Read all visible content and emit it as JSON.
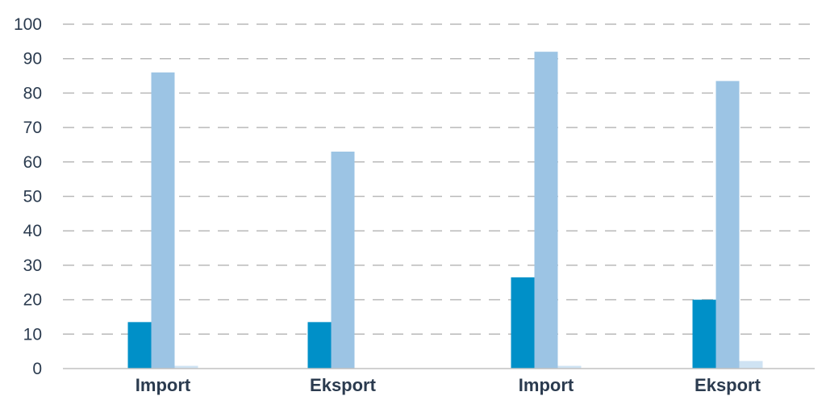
{
  "chart_data": {
    "type": "bar",
    "categories": [
      "Import",
      "Eksport",
      "Import",
      "Eksport"
    ],
    "series": [
      {
        "values": [
          13.5,
          13.5,
          26.5,
          20
        ],
        "color": "#0090c8"
      },
      {
        "values": [
          86,
          63,
          92,
          83.5
        ],
        "color": "#9cc4e4"
      },
      {
        "values": [
          0.8,
          0,
          0.8,
          2.2
        ],
        "color": "#cfe3f3"
      }
    ],
    "yticks": [
      0,
      10,
      20,
      30,
      40,
      50,
      60,
      70,
      80,
      90,
      100
    ],
    "ylim": [
      0,
      100
    ],
    "grid": true,
    "grid_style": "dashed",
    "title": "",
    "xlabel": "",
    "ylabel": ""
  }
}
